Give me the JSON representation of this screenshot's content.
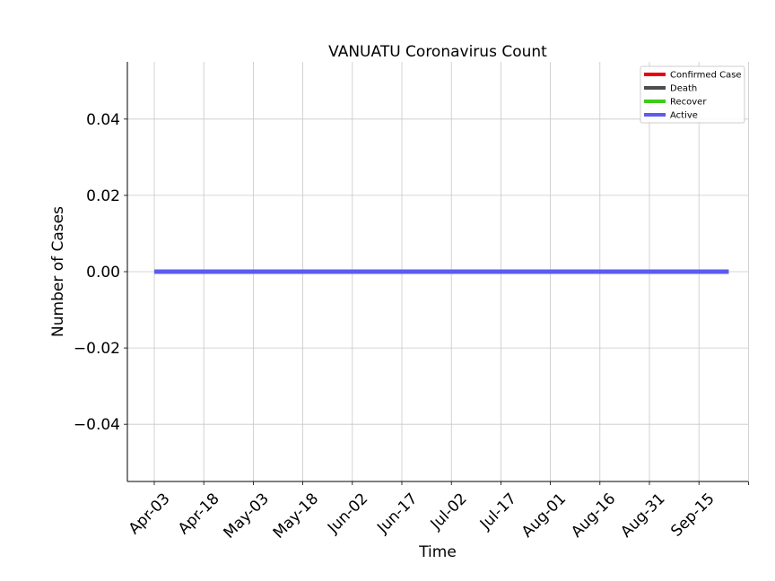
{
  "chart_data": {
    "type": "line",
    "title": "VANUATU Coronavirus Count",
    "xlabel": "Time",
    "ylabel": "Number of Cases",
    "x_tick_labels": [
      "Apr-03",
      "Apr-18",
      "May-03",
      "May-18",
      "Jun-02",
      "Jun-17",
      "Jul-02",
      "Jul-17",
      "Aug-01",
      "Aug-16",
      "Aug-31",
      "Sep-15"
    ],
    "y_tick_labels": [
      "0.04",
      "0.02",
      "0.00",
      "−0.02",
      "−0.04"
    ],
    "ylim": [
      -0.055,
      0.055
    ],
    "grid": true,
    "legend_position": "top-right",
    "x_range": [
      "2020-04-03",
      "2020-09-15"
    ],
    "series": [
      {
        "name": "Confirmed Case",
        "color": "#e8000b",
        "x": [
          "2020-04-03",
          "2020-09-24"
        ],
        "y": [
          0,
          0
        ]
      },
      {
        "name": "Death",
        "color": "#4d4d4d",
        "x": [
          "2020-04-03",
          "2020-09-24"
        ],
        "y": [
          0,
          0
        ]
      },
      {
        "name": "Recover",
        "color": "#3ecb1a",
        "x": [
          "2020-04-03",
          "2020-09-24"
        ],
        "y": [
          0,
          0
        ]
      },
      {
        "name": "Active",
        "color": "#5b5bf0",
        "x": [
          "2020-04-03",
          "2020-09-24"
        ],
        "y": [
          0,
          0
        ]
      }
    ]
  }
}
